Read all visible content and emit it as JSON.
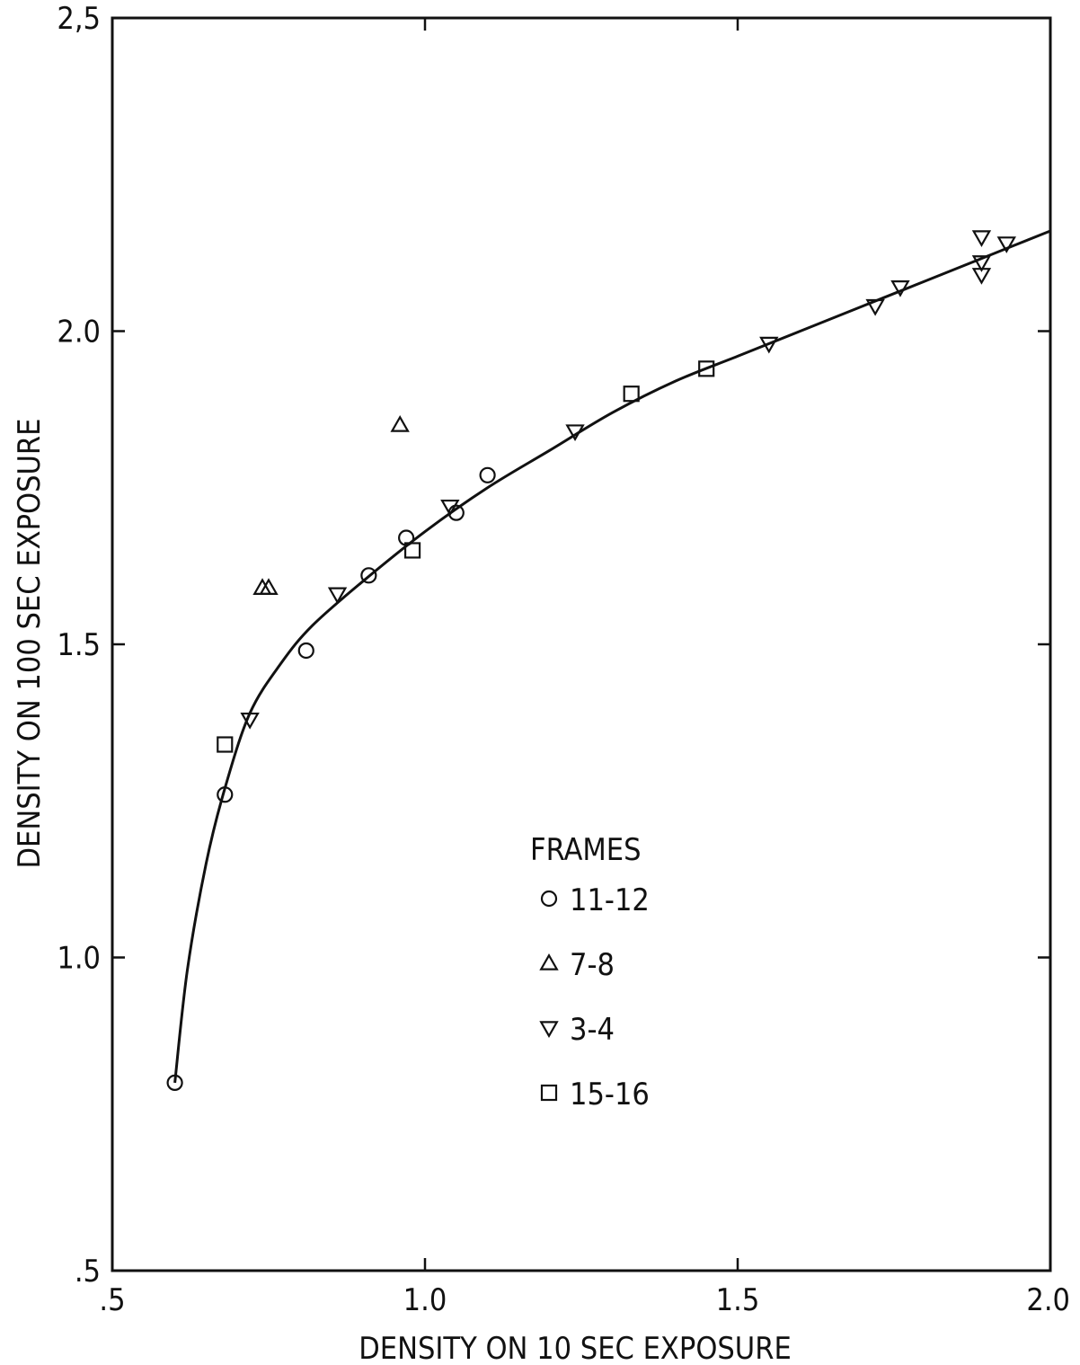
{
  "chart_data": {
    "type": "scatter",
    "title": "",
    "xlabel": "DENSITY ON 10 SEC EXPOSURE",
    "ylabel": "DENSITY ON 100 SEC EXPOSURE",
    "xlim": [
      0.5,
      2.0
    ],
    "ylim": [
      0.5,
      2.5
    ],
    "x_ticks": [
      0.5,
      1.0,
      1.5,
      2.0
    ],
    "x_tick_labels": [
      ".5",
      "1.0",
      "1.5",
      "2.0"
    ],
    "y_ticks": [
      0.5,
      1.0,
      1.5,
      2.0,
      2.5
    ],
    "y_tick_labels": [
      ".5",
      "1.0",
      "1.5",
      "2.0",
      "2,5"
    ],
    "grid": false,
    "legend": {
      "title": "FRAMES",
      "placement": "center-right",
      "entries": [
        "11-12",
        "7-8",
        "3-4",
        "15-16"
      ]
    },
    "series": [
      {
        "name": "11-12",
        "marker": "circle",
        "points": [
          [
            0.6,
            0.8
          ],
          [
            0.68,
            1.26
          ],
          [
            0.81,
            1.49
          ],
          [
            0.91,
            1.61
          ],
          [
            0.97,
            1.67
          ],
          [
            1.05,
            1.71
          ],
          [
            1.1,
            1.77
          ]
        ]
      },
      {
        "name": "7-8",
        "marker": "triangle-up",
        "points": [
          [
            0.74,
            1.59
          ],
          [
            0.75,
            1.59
          ],
          [
            0.96,
            1.85
          ]
        ]
      },
      {
        "name": "3-4",
        "marker": "triangle-down",
        "points": [
          [
            0.72,
            1.38
          ],
          [
            0.86,
            1.58
          ],
          [
            1.04,
            1.72
          ],
          [
            1.24,
            1.84
          ],
          [
            1.55,
            1.98
          ],
          [
            1.72,
            2.04
          ],
          [
            1.76,
            2.07
          ],
          [
            1.89,
            2.15
          ],
          [
            1.89,
            2.11
          ],
          [
            1.89,
            2.09
          ],
          [
            1.93,
            2.14
          ]
        ]
      },
      {
        "name": "15-16",
        "marker": "square",
        "points": [
          [
            0.68,
            1.34
          ],
          [
            0.98,
            1.65
          ],
          [
            1.33,
            1.9
          ],
          [
            1.45,
            1.94
          ]
        ]
      }
    ],
    "fit_curve": {
      "points": [
        [
          0.6,
          0.8
        ],
        [
          0.62,
          0.98
        ],
        [
          0.65,
          1.15
        ],
        [
          0.68,
          1.27
        ],
        [
          0.72,
          1.39
        ],
        [
          0.77,
          1.47
        ],
        [
          0.82,
          1.53
        ],
        [
          0.9,
          1.6
        ],
        [
          1.0,
          1.68
        ],
        [
          1.1,
          1.75
        ],
        [
          1.2,
          1.81
        ],
        [
          1.3,
          1.87
        ],
        [
          1.4,
          1.92
        ],
        [
          1.5,
          1.96
        ],
        [
          1.6,
          2.0
        ],
        [
          1.7,
          2.04
        ],
        [
          1.8,
          2.08
        ],
        [
          1.9,
          2.12
        ],
        [
          2.0,
          2.16
        ]
      ]
    }
  }
}
